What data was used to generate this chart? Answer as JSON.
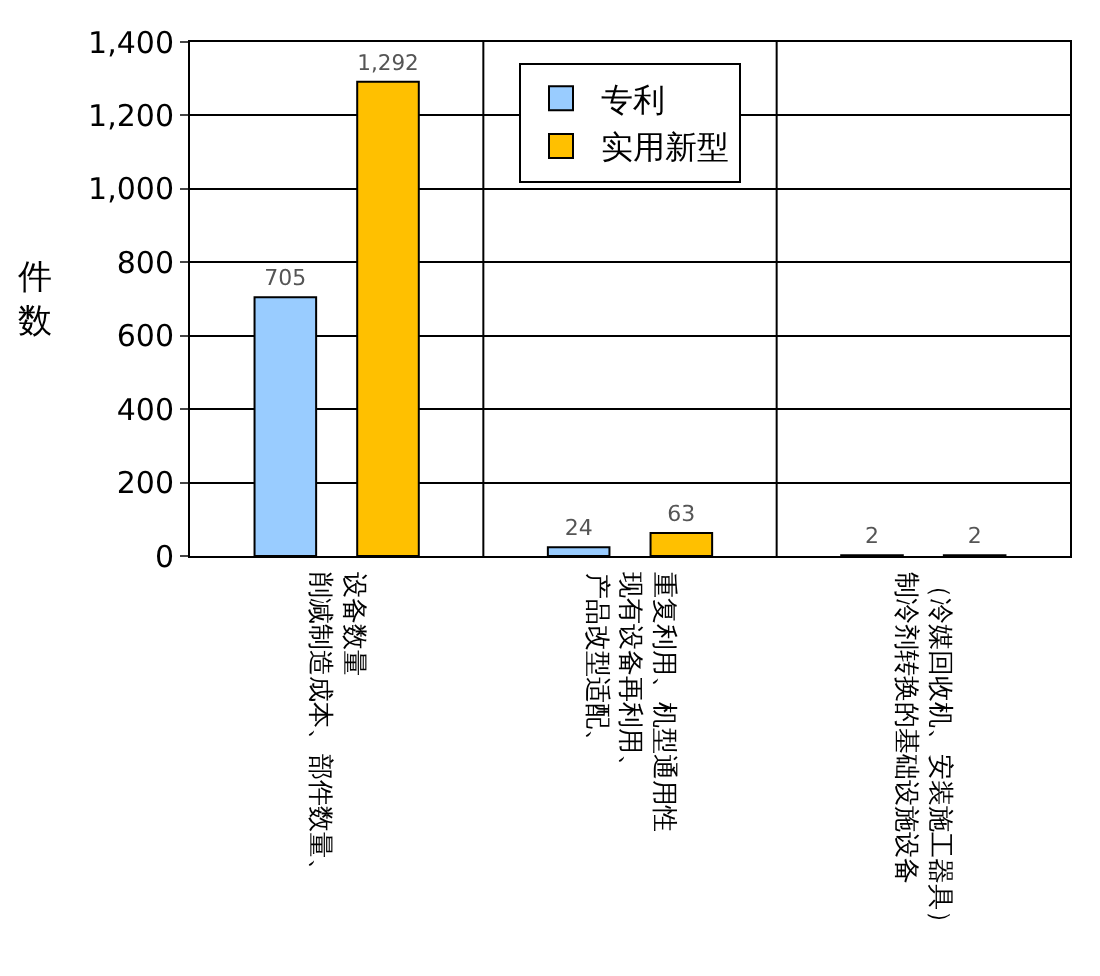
{
  "chart_data": {
    "type": "bar",
    "ylabel": "件数",
    "categories": [
      "削减制造成本、部件数量、设备数量",
      "产品改型适配、现有设备再利用、重复利用、机型通用性",
      "制冷剂转换的基础设施设备（冷媒回收机、安装施工器具）"
    ],
    "series": [
      {
        "name": "专利",
        "color": "#99ccff",
        "values": [
          705,
          24,
          2
        ],
        "value_labels": [
          "705",
          "24",
          "2"
        ]
      },
      {
        "name": "实用新型",
        "color": "#ffc000",
        "values": [
          1292,
          63,
          2
        ],
        "value_labels": [
          "1,292",
          "63",
          "2"
        ]
      }
    ],
    "ylim": [
      0,
      1400
    ],
    "yticks": [
      {
        "value": 0,
        "label": "0"
      },
      {
        "value": 200,
        "label": "200"
      },
      {
        "value": 400,
        "label": "400"
      },
      {
        "value": 600,
        "label": "600"
      },
      {
        "value": 800,
        "label": "800"
      },
      {
        "value": 1000,
        "label": "1,000"
      },
      {
        "value": 1200,
        "label": "1,200"
      },
      {
        "value": 1400,
        "label": "1,400"
      }
    ],
    "grid": true,
    "legend": "top"
  }
}
